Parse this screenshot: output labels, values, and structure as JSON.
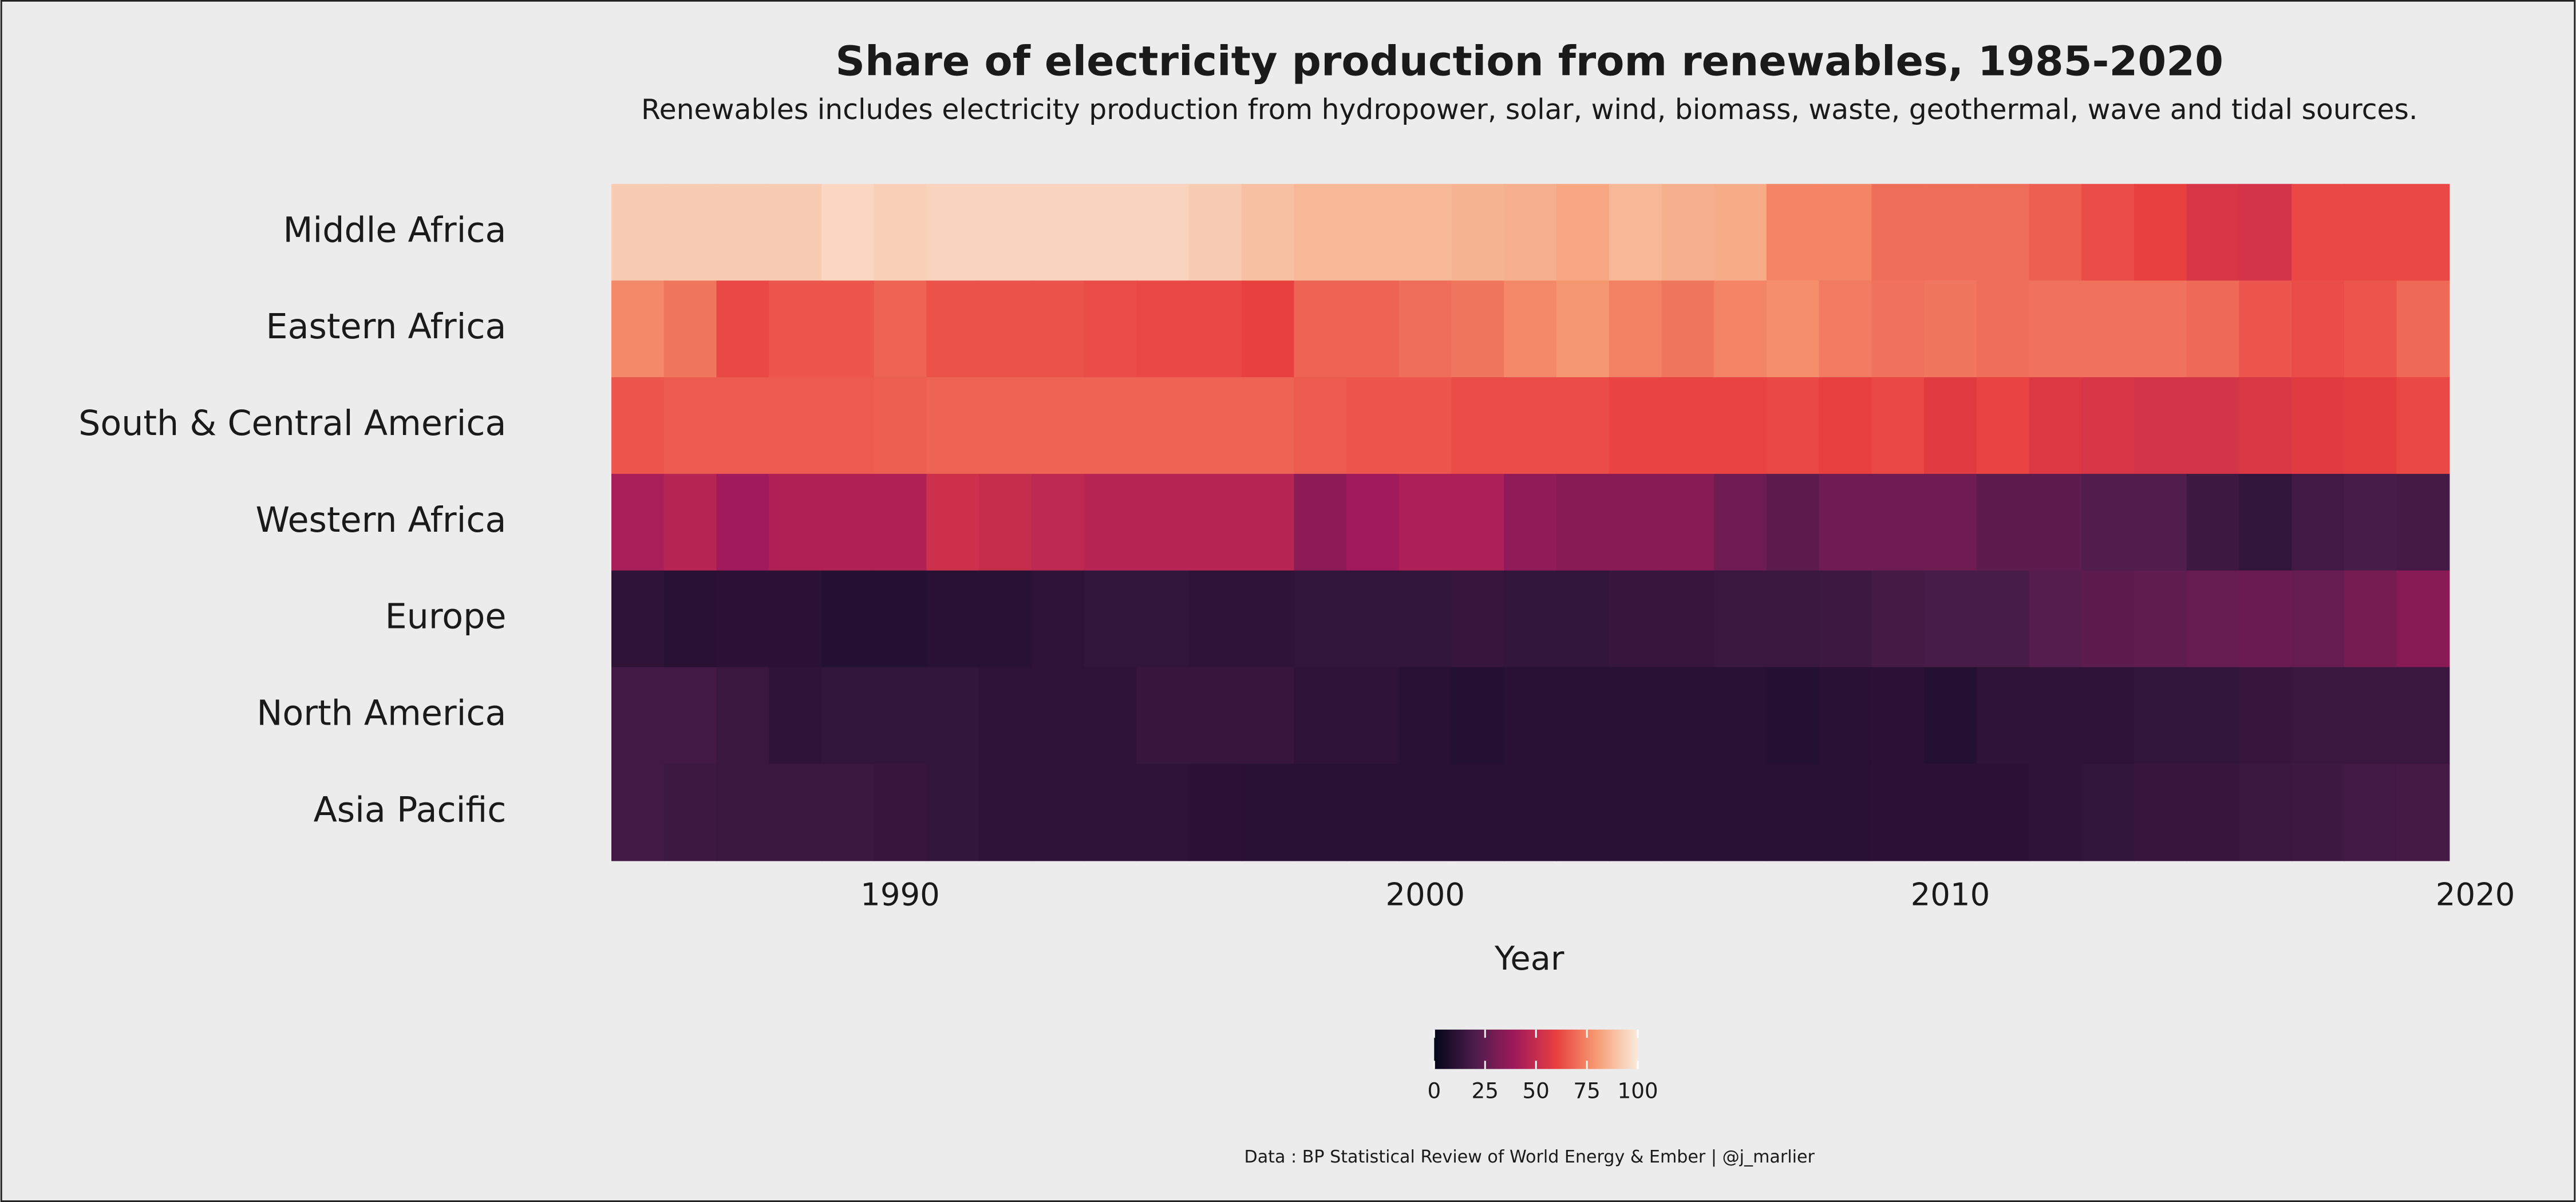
{
  "chart_data": {
    "type": "heatmap",
    "title": "Share of electricity production from renewables, 1985-2020",
    "subtitle": "Renewables includes electricity production from hydropower, solar, wind, biomass, waste, geothermal, wave and tidal sources.",
    "x_label": "Year",
    "caption": "Data : BP Statistical Review of World Energy & Ember | @j_marlier",
    "x": [
      1985,
      1986,
      1987,
      1988,
      1989,
      1990,
      1991,
      1992,
      1993,
      1994,
      1995,
      1996,
      1997,
      1998,
      1999,
      2000,
      2001,
      2002,
      2003,
      2004,
      2005,
      2006,
      2007,
      2008,
      2009,
      2010,
      2011,
      2012,
      2013,
      2014,
      2015,
      2016,
      2017,
      2018,
      2019
    ],
    "rows": [
      "Middle Africa",
      "Eastern Africa",
      "South & Central America",
      "Western Africa",
      "Europe",
      "North America",
      "Asia Pacific"
    ],
    "values": [
      [
        92,
        92,
        92,
        92,
        95,
        93,
        94,
        94,
        94,
        94,
        94,
        92,
        89,
        87,
        87,
        87,
        86,
        85,
        83,
        87,
        85,
        84,
        75,
        75,
        70,
        70,
        70,
        67,
        63,
        60,
        55,
        54,
        62,
        62,
        62
      ],
      [
        76,
        72,
        62,
        65,
        65,
        68,
        64,
        64,
        64,
        63,
        62,
        62,
        60,
        68,
        68,
        70,
        72,
        76,
        79,
        74,
        72,
        75,
        77,
        73,
        71,
        72,
        70,
        71,
        71,
        71,
        69,
        65,
        63,
        65,
        69
      ],
      [
        65,
        66,
        66,
        66,
        66,
        67,
        68,
        68,
        68,
        68,
        68,
        68,
        68,
        66,
        65,
        65,
        63,
        63,
        63,
        61,
        61,
        61,
        62,
        60,
        62,
        58,
        61,
        57,
        55,
        54,
        54,
        56,
        58,
        59,
        62
      ],
      [
        42,
        46,
        40,
        44,
        44,
        44,
        52,
        50,
        48,
        46,
        46,
        46,
        46,
        35,
        40,
        43,
        43,
        36,
        34,
        34,
        34,
        28,
        24,
        28,
        28,
        28,
        24,
        24,
        21,
        21,
        16,
        13,
        17,
        19,
        18
      ],
      [
        12,
        10,
        11,
        11,
        9,
        9,
        10,
        10,
        12,
        13,
        13,
        12,
        12,
        13,
        13,
        13,
        14,
        13,
        13,
        14,
        14,
        15,
        15,
        16,
        18,
        19,
        19,
        22,
        24,
        25,
        26,
        27,
        26,
        30,
        34
      ],
      [
        17,
        17,
        15,
        12,
        13,
        13,
        13,
        12,
        12,
        12,
        14,
        14,
        14,
        12,
        12,
        10,
        9,
        10,
        10,
        10,
        10,
        10,
        9,
        10,
        11,
        9,
        12,
        12,
        12,
        13,
        13,
        14,
        15,
        15,
        15
      ],
      [
        17,
        16,
        15,
        15,
        15,
        14,
        13,
        12,
        12,
        12,
        12,
        11,
        10,
        10,
        10,
        10,
        10,
        10,
        10,
        10,
        10,
        10,
        10,
        10,
        11,
        11,
        11,
        12,
        13,
        14,
        14,
        15,
        16,
        17,
        18
      ]
    ],
    "xlim": [
      1984.5,
      2019.5
    ],
    "xticks": [
      1990,
      2000,
      2010,
      2020
    ],
    "clim": [
      0,
      100
    ],
    "cticks": [
      0,
      25,
      50,
      75,
      100
    ],
    "colorscale": [
      "#03051a",
      "#4c1d4b",
      "#a11a5b",
      "#e83f3f",
      "#f69c73",
      "#faebdd"
    ]
  }
}
